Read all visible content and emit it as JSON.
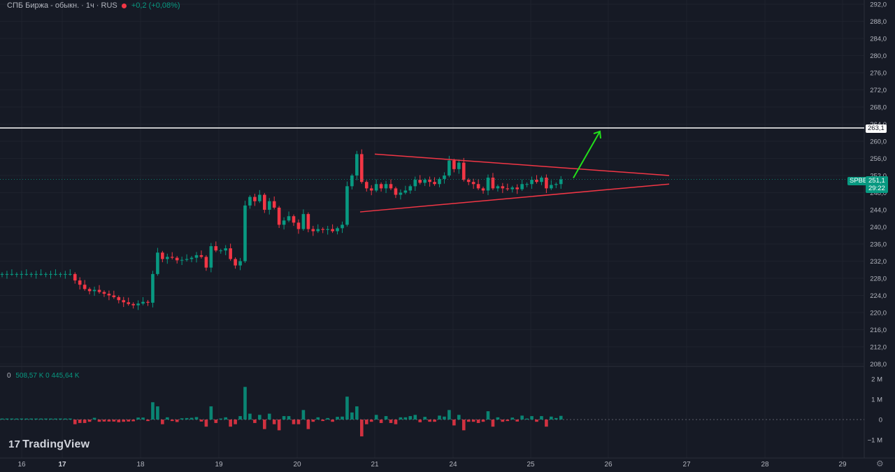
{
  "header": {
    "title": "СПБ Биржа - обыкн. · 1ч · RUS",
    "change": "+0,2 (+0,08%)"
  },
  "volume_header": {
    "label": "0",
    "values": "508,57 K  0  445,64 K"
  },
  "logo": {
    "text": "TradingView",
    "mark": "17"
  },
  "price_tags": {
    "level": "263,1",
    "symbol": "SPBE",
    "last": "251,1",
    "countdown": "29:22"
  },
  "colors": {
    "background": "#161a25",
    "up": "#089981",
    "down": "#f23645",
    "trendline": "#f23645",
    "arrow": "#22e01b",
    "level_line": "#ffffff",
    "text": "#b2b5be"
  },
  "chart_data": {
    "type": "candlestick",
    "title": "СПБ Биржа - обыкн. · 1ч · RUS",
    "y_ticks": [
      "292,0",
      "288,0",
      "284,0",
      "280,0",
      "276,0",
      "272,0",
      "268,0",
      "264,0",
      "260,0",
      "256,0",
      "252,0",
      "248,0",
      "244,0",
      "240,0",
      "236,0",
      "232,0",
      "228,0",
      "224,0",
      "220,0",
      "216,0",
      "212,0",
      "208,0"
    ],
    "ylim": [
      208,
      292
    ],
    "volume_ticks": [
      "2 M",
      "1 M",
      "0",
      "−1 M"
    ],
    "x_ticks": [
      "16",
      "17",
      "18",
      "19",
      "20",
      "21",
      "24",
      "25",
      "26",
      "27",
      "28",
      "29"
    ],
    "horizontal_level": 263.1,
    "last_price": 251.1,
    "series": [
      {
        "name": "price",
        "closes": [
          229.0,
          229.0,
          229.0,
          229.0,
          229.0,
          229.0,
          229.0,
          229.0,
          229.0,
          229.0,
          229.0,
          229.0,
          229.0,
          229.0,
          229.0,
          227.5,
          226.5,
          225.5,
          225.0,
          225.3,
          224.8,
          224.4,
          224.0,
          223.6,
          222.9,
          222.4,
          222.0,
          221.7,
          222.1,
          222.5,
          222.3,
          229.0,
          234.0,
          232.5,
          233.0,
          232.8,
          232.2,
          232.3,
          232.5,
          232.8,
          233.4,
          233.0,
          230.5,
          235.5,
          234.5,
          234.5,
          235.0,
          232.5,
          231.0,
          232.0,
          245.0,
          247.0,
          246.0,
          247.5,
          244.0,
          246.0,
          244.5,
          240.5,
          241.5,
          242.5,
          241.0,
          239.5,
          243.0,
          239.5,
          239.0,
          239.5,
          239.3,
          239.5,
          239.0,
          239.7,
          240.5,
          249.5,
          252.0,
          257.0,
          250.5,
          249.0,
          248.5,
          250.0,
          249.0,
          250.0,
          249.0,
          247.5,
          248.0,
          248.5,
          249.5,
          251.0,
          250.3,
          251.0,
          250.5,
          250.0,
          251.2,
          252.0,
          255.5,
          253.5,
          255.0,
          251.0,
          250.5,
          250.0,
          249.0,
          248.5,
          251.5,
          249.0,
          249.5,
          249.0,
          248.8,
          249.2,
          248.8,
          250.0,
          250.0,
          251.0,
          250.5,
          251.5,
          249.0,
          249.8,
          250.0,
          251.1
        ]
      }
    ],
    "annotations": [
      {
        "type": "trendline",
        "points": [
          [
            "21",
            257.0
          ],
          [
            "27",
            252.0
          ]
        ]
      },
      {
        "type": "trendline",
        "points": [
          [
            "21",
            243.5
          ],
          [
            "27",
            250.0
          ]
        ]
      },
      {
        "type": "arrow",
        "direction": "up",
        "target": 263.1
      }
    ]
  }
}
